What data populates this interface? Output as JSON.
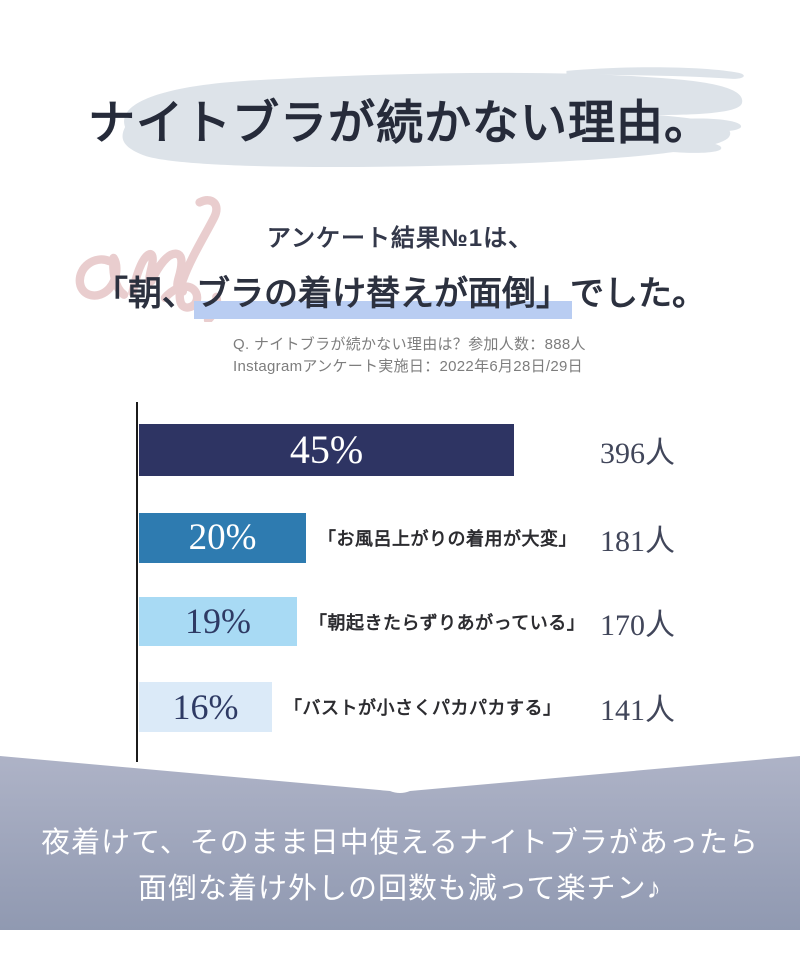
{
  "colors": {
    "brush": "#dde3e9",
    "highlight": "#b9cdf2",
    "script_pink": "#e9cdce",
    "banner_top": "#aeb3c7",
    "banner_bottom": "#9099b1",
    "axis": "#1b1b1b",
    "title_text": "#262b3a",
    "headline_text": "#2c313f",
    "meta_text": "#7d7d7d",
    "count_text": "#41465a",
    "banner_text": "#ffffff"
  },
  "title": {
    "text": "ナイトブラが続かない理由。"
  },
  "decoration": {
    "script_text": "ans,"
  },
  "subtitle": {
    "text": "アンケート結果№1は、"
  },
  "headline": {
    "pre": "「朝、",
    "highlighted": "ブラの着け替えが面倒」",
    "post": "でした。"
  },
  "survey_meta": {
    "line1": "Q. ナイトブラが続かない理由は？参加人数：888人",
    "line2": "Instagramアンケート実施日：2022年6月28日/29日"
  },
  "chart_data": {
    "type": "bar",
    "orientation": "horizontal",
    "title": "ナイトブラが続かない理由（Instagramアンケート 888人）",
    "xlabel": "",
    "ylabel": "",
    "x_max_percent": 45,
    "gridlines": "none",
    "legend": "none",
    "categories": [
      "朝、ブラの着け替えが面倒",
      "お風呂上がりの着用が大変",
      "朝起きたらずりあがっている",
      "バストが小さくパカパカする"
    ],
    "values": [
      45,
      20,
      19,
      16
    ],
    "percent_labels": [
      "45%",
      "20%",
      "19%",
      "16%"
    ],
    "bar_labels": [
      "",
      "「お風呂上がりの着用が大変」",
      "「朝起きたらずりあがっている」",
      "「バストが小さくパカパカする」"
    ],
    "counts": [
      "396人",
      "181人",
      "170人",
      "141人"
    ],
    "bar_colors": [
      "#2e3463",
      "#2e7bb0",
      "#a8daf4",
      "#dbeaf8"
    ],
    "percent_text_colors": [
      "#ffffff",
      "#ffffff",
      "#2e3a64",
      "#2e3a64"
    ]
  },
  "footer": {
    "line1": "夜着けて、そのまま日中使えるナイトブラがあったら",
    "line2": "面倒な着け外しの回数も減って楽チン♪"
  }
}
